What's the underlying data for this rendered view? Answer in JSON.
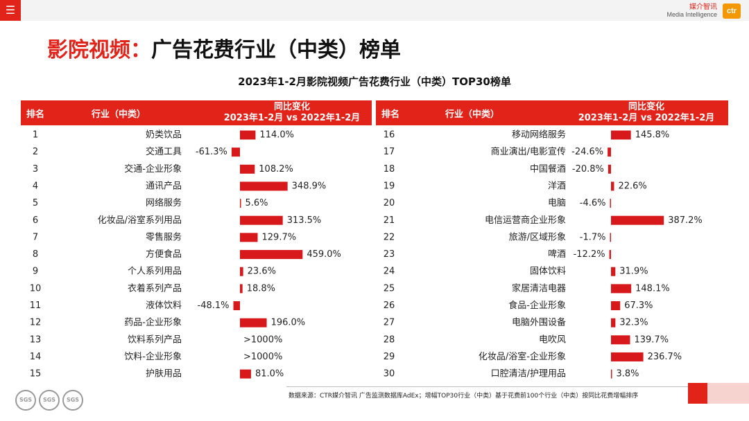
{
  "header": {
    "menu_icon": "hamburger-icon",
    "brand_cn": "媒介智讯",
    "brand_en": "Media Intelligence",
    "brand_logo": "ctr"
  },
  "title": {
    "accent": "影院视频：",
    "main": "广告花费行业（中类）榜单"
  },
  "table_header": {
    "rank": "排名",
    "industry": "行业（中类）",
    "change_line1": "同比变化",
    "change_line2": "2023年1-2月 vs 2022年1-2月"
  },
  "source": "数据来源：CTR媒介智讯 广告监测数据库AdEx；增幅TOP30行业（中类）基于花费前100个行业（中类）按同比花费增幅排序",
  "seals": [
    "SGS",
    "SGS",
    "SGS"
  ],
  "colors": {
    "accent": "#e2231a",
    "bar": "#d7191c"
  },
  "chart_data": {
    "type": "bar",
    "orientation": "horizontal",
    "title": "2023年1-2月影院视频广告花费行业（中类）TOP30榜单",
    "xlabel": "同比变化 2023年1-2月 vs 2022年1-2月",
    "unit": "%",
    "rows": [
      {
        "rank": "1",
        "name": "奶类饮品",
        "value": 114.0,
        "label": "114.0%"
      },
      {
        "rank": "2",
        "name": "交通工具",
        "value": -61.3,
        "label": "-61.3%"
      },
      {
        "rank": "3",
        "name": "交通-企业形象",
        "value": 108.2,
        "label": "108.2%"
      },
      {
        "rank": "4",
        "name": "通讯产品",
        "value": 348.9,
        "label": "348.9%"
      },
      {
        "rank": "5",
        "name": "网络服务",
        "value": 5.6,
        "label": "5.6%"
      },
      {
        "rank": "6",
        "name": "化妆品/浴室系列用品",
        "value": 313.5,
        "label": "313.5%"
      },
      {
        "rank": "7",
        "name": "零售服务",
        "value": 129.7,
        "label": "129.7%"
      },
      {
        "rank": "8",
        "name": "方便食品",
        "value": 459.0,
        "label": "459.0%"
      },
      {
        "rank": "9",
        "name": "个人系列用品",
        "value": 23.6,
        "label": "23.6%"
      },
      {
        "rank": "10",
        "name": "衣着系列产品",
        "value": 18.8,
        "label": "18.8%"
      },
      {
        "rank": "11",
        "name": "液体饮料",
        "value": -48.1,
        "label": "-48.1%"
      },
      {
        "rank": "12",
        "name": "药品-企业形象",
        "value": 196.0,
        "label": "196.0%"
      },
      {
        "rank": "13",
        "name": "饮料系列产品",
        "value": null,
        "label": ">1000%"
      },
      {
        "rank": "14",
        "name": "饮料-企业形象",
        "value": null,
        "label": ">1000%"
      },
      {
        "rank": "15",
        "name": "护肤用品",
        "value": 81.0,
        "label": "81.0%"
      },
      {
        "rank": "16",
        "name": "移动网络服务",
        "value": 145.8,
        "label": "145.8%"
      },
      {
        "rank": "17",
        "name": "商业演出/电影宣传",
        "value": -24.6,
        "label": "-24.6%"
      },
      {
        "rank": "18",
        "name": "中国餐酒",
        "value": -20.8,
        "label": "-20.8%"
      },
      {
        "rank": "19",
        "name": "洋酒",
        "value": 22.6,
        "label": "22.6%"
      },
      {
        "rank": "20",
        "name": "电脑",
        "value": -4.6,
        "label": "-4.6%"
      },
      {
        "rank": "21",
        "name": "电信运营商企业形象",
        "value": 387.2,
        "label": "387.2%"
      },
      {
        "rank": "22",
        "name": "旅游/区域形象",
        "value": -1.7,
        "label": "-1.7%"
      },
      {
        "rank": "23",
        "name": "啤酒",
        "value": -12.2,
        "label": "-12.2%"
      },
      {
        "rank": "24",
        "name": "固体饮料",
        "value": 31.9,
        "label": "31.9%"
      },
      {
        "rank": "25",
        "name": "家居清洁电器",
        "value": 148.1,
        "label": "148.1%"
      },
      {
        "rank": "26",
        "name": "食品-企业形象",
        "value": 67.3,
        "label": "67.3%"
      },
      {
        "rank": "27",
        "name": "电脑外围设备",
        "value": 32.3,
        "label": "32.3%"
      },
      {
        "rank": "28",
        "name": "电吹风",
        "value": 139.7,
        "label": "139.7%"
      },
      {
        "rank": "29",
        "name": "化妆品/浴室-企业形象",
        "value": 236.7,
        "label": "236.7%"
      },
      {
        "rank": "30",
        "name": "口腔清洁/护理用品",
        "value": 3.8,
        "label": "3.8%"
      }
    ]
  }
}
